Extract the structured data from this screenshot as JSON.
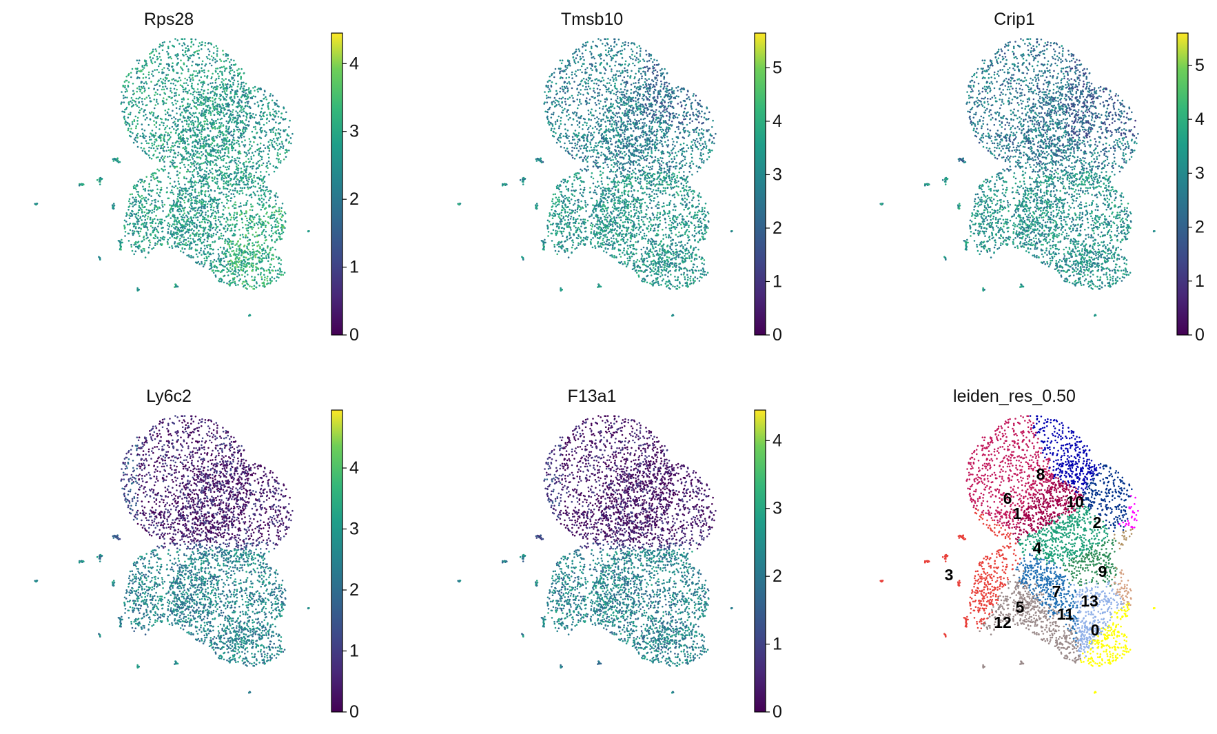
{
  "chart_data": [
    {
      "type": "scatter",
      "title": "Rps28",
      "color_scale": "viridis",
      "colorbar": {
        "ticks": [
          0,
          1,
          2,
          3,
          4
        ],
        "range": [
          0,
          4.45
        ]
      }
    },
    {
      "type": "scatter",
      "title": "Tmsb10",
      "color_scale": "viridis",
      "colorbar": {
        "ticks": [
          0,
          1,
          2,
          3,
          4,
          5
        ],
        "range": [
          0,
          5.65
        ]
      }
    },
    {
      "type": "scatter",
      "title": "Crip1",
      "color_scale": "viridis",
      "colorbar": {
        "ticks": [
          0,
          1,
          2,
          3,
          4,
          5
        ],
        "range": [
          0,
          5.6
        ]
      }
    },
    {
      "type": "scatter",
      "title": "Ly6c2",
      "color_scale": "viridis",
      "colorbar": {
        "ticks": [
          0,
          1,
          2,
          3,
          4
        ],
        "range": [
          0,
          4.95
        ]
      }
    },
    {
      "type": "scatter",
      "title": "F13a1",
      "color_scale": "viridis",
      "colorbar": {
        "ticks": [
          0,
          1,
          2,
          3,
          4
        ],
        "range": [
          0,
          4.45
        ]
      }
    },
    {
      "type": "scatter",
      "title": "leiden_res_0.50",
      "clusters": [
        {
          "label": "0",
          "color": "#ffff00"
        },
        {
          "label": "1",
          "color": "#a00048"
        },
        {
          "label": "2",
          "color": "#ff00ff"
        },
        {
          "label": "3",
          "color": "#e8403a"
        },
        {
          "label": "4",
          "color": "#1b9e77"
        },
        {
          "label": "5",
          "color": "#1f6fb4"
        },
        {
          "label": "6",
          "color": "#c2185b"
        },
        {
          "label": "7",
          "color": "#2e8b57"
        },
        {
          "label": "8",
          "color": "#0000b0"
        },
        {
          "label": "9",
          "color": "#b09060"
        },
        {
          "label": "10",
          "color": "#00308a"
        },
        {
          "label": "11",
          "color": "#90b0e8"
        },
        {
          "label": "12",
          "color": "#9a8a8a"
        },
        {
          "label": "13",
          "color": "#d4a080"
        }
      ]
    }
  ]
}
